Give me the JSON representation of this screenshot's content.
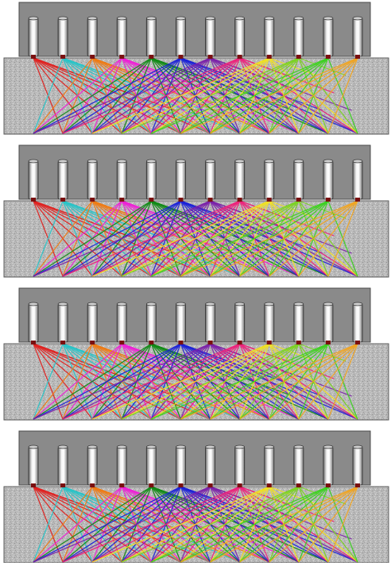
{
  "figure": {
    "panel_count": 4,
    "transducers_per_panel": 12,
    "element_icon": "cylindrical-transducer-icon",
    "colors": {
      "housing": "#8a8a8a",
      "housing_edge": "#4a4a4a",
      "medium": "#b4b4b4",
      "medium_edge": "#5a5a5a",
      "element_tip": "#7a1010",
      "ray_palette": [
        "#e0201e",
        "#27c4c8",
        "#f07a12",
        "#ee1fd6",
        "#0e8a14",
        "#1a20d8",
        "#7a1fa8",
        "#ee1f7a",
        "#f2e21e",
        "#7ad41e",
        "#3ad21e",
        "#f2a41e"
      ]
    }
  }
}
